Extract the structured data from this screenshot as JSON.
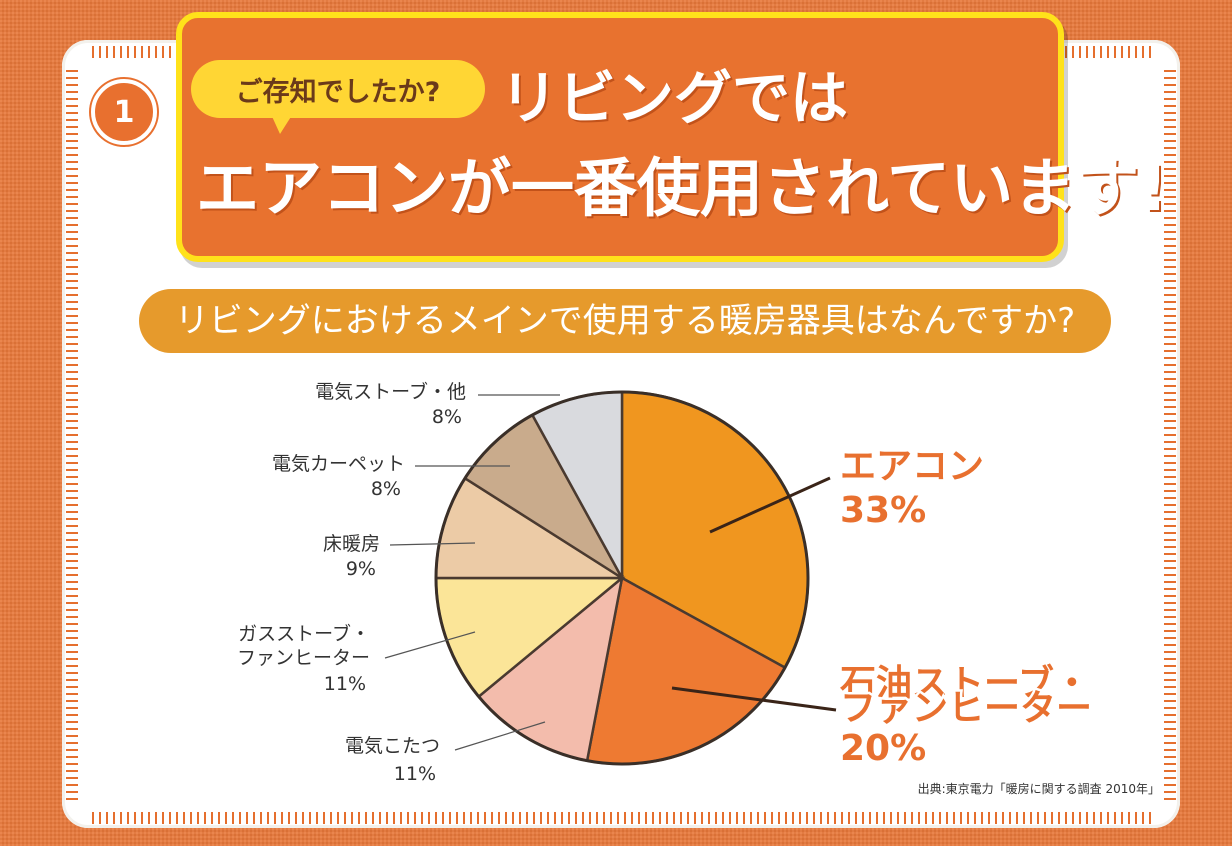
{
  "badge_number": "1",
  "bubble_text": "ご存知でしたか?",
  "headline_line1": "リビングでは",
  "headline_line2": "エアコンが一番使用されています!",
  "question": "リビングにおけるメインで使用する暖房器具はなんですか?",
  "source": "出典:東京電力「暖房に関する調査 2010年」",
  "colors": {
    "background": "#e8783a",
    "panel": "#e8722f",
    "panel_border": "#ffe21a",
    "question_bar": "#e69a2c",
    "highlight_text": "#e8702f"
  },
  "chart_data": {
    "type": "pie",
    "title": "",
    "start": "12 o'clock, clockwise",
    "slices": [
      {
        "label": "エアコン",
        "value": 33,
        "pct_text": "33%",
        "color": "#f0961f",
        "emphasis": true
      },
      {
        "label": "石油ストーブ・ファンヒーター",
        "value": 20,
        "pct_text": "20%",
        "color": "#ee7a32",
        "emphasis": true
      },
      {
        "label": "電気こたつ",
        "value": 11,
        "pct_text": "11%",
        "color": "#f3bcac",
        "emphasis": false
      },
      {
        "label": "ガスストーブ・ファンヒーター",
        "value": 11,
        "pct_text": "11%",
        "color": "#fbe598",
        "emphasis": false
      },
      {
        "label": "床暖房",
        "value": 9,
        "pct_text": "9%",
        "color": "#eccba6",
        "emphasis": false
      },
      {
        "label": "電気カーペット",
        "value": 8,
        "pct_text": "8%",
        "color": "#c9ab8c",
        "emphasis": false
      },
      {
        "label": "電気ストーブ・他",
        "value": 8,
        "pct_text": "8%",
        "color": "#d9dade",
        "emphasis": false
      }
    ]
  }
}
